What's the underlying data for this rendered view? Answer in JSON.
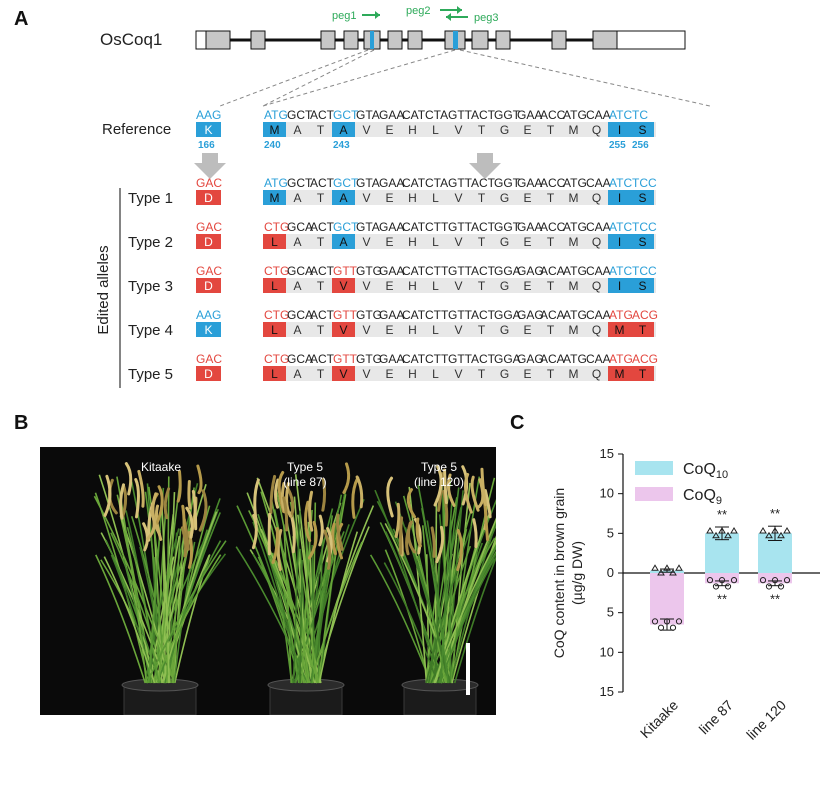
{
  "panels": {
    "a": "A",
    "b": "B",
    "c": "C"
  },
  "gene": {
    "name": "OsCoq1",
    "pegs": [
      {
        "label": "peg1",
        "direction": "right"
      },
      {
        "label": "peg2",
        "direction": "right"
      },
      {
        "label": "peg3",
        "direction": "left"
      }
    ]
  },
  "alignment": {
    "reference_label": "Reference",
    "edited_label": "Edited alleles",
    "reference": {
      "codon1": "AAG",
      "aa1": "K",
      "pos1": "166",
      "seq": [
        "ATG",
        "GCT",
        "ACT",
        "GCT",
        "GTA",
        "GAA",
        "CAT",
        "CTA",
        "GTT",
        "ACT",
        "GGT",
        "GAA",
        "ACC",
        "ATG",
        "CAA",
        "ATC",
        "TC"
      ],
      "aa": [
        "M",
        "A",
        "T",
        "A",
        "V",
        "E",
        "H",
        "L",
        "V",
        "T",
        "G",
        "E",
        "T",
        "M",
        "Q",
        "I",
        "S"
      ],
      "pos_a": "240",
      "pos_b": "243",
      "pos_c": "255",
      "pos_d": "256"
    },
    "types": [
      {
        "label": "Type 1",
        "codon1": "GAC",
        "aa1": "D",
        "seq": [
          "ATG",
          "GCT",
          "ACT",
          "GCT",
          "GTA",
          "GAA",
          "CAT",
          "CTA",
          "GTT",
          "ACT",
          "GGT",
          "GAA",
          "ACC",
          "ATG",
          "CAA",
          "ATC",
          "TCC"
        ],
        "aa": [
          "M",
          "A",
          "T",
          "A",
          "V",
          "E",
          "H",
          "L",
          "V",
          "T",
          "G",
          "E",
          "T",
          "M",
          "Q",
          "I",
          "S"
        ]
      },
      {
        "label": "Type 2",
        "codon1": "GAC",
        "aa1": "D",
        "seq": [
          "CTG",
          "GCA",
          "ACT",
          "GCT",
          "GTA",
          "GAA",
          "CAT",
          "CTT",
          "GTT",
          "ACT",
          "GGT",
          "GAA",
          "ACC",
          "ATG",
          "CAA",
          "ATC",
          "TCC"
        ],
        "aa": [
          "L",
          "A",
          "T",
          "A",
          "V",
          "E",
          "H",
          "L",
          "V",
          "T",
          "G",
          "E",
          "T",
          "M",
          "Q",
          "I",
          "S"
        ]
      },
      {
        "label": "Type 3",
        "codon1": "GAC",
        "aa1": "D",
        "seq": [
          "CTG",
          "GCA",
          "ACT",
          "GTT",
          "GTG",
          "GAA",
          "CAT",
          "CTT",
          "GTT",
          "ACT",
          "GGA",
          "GAG",
          "ACA",
          "ATG",
          "CAA",
          "ATC",
          "TCC"
        ],
        "aa": [
          "L",
          "A",
          "T",
          "V",
          "V",
          "E",
          "H",
          "L",
          "V",
          "T",
          "G",
          "E",
          "T",
          "M",
          "Q",
          "I",
          "S"
        ]
      },
      {
        "label": "Type 4",
        "codon1": "AAG",
        "aa1": "K",
        "seq": [
          "CTG",
          "GCA",
          "ACT",
          "GTT",
          "GTG",
          "GAA",
          "CAT",
          "CTT",
          "GTT",
          "ACT",
          "GGA",
          "GAG",
          "ACA",
          "ATG",
          "CAA",
          "ATG",
          "ACG"
        ],
        "aa": [
          "L",
          "A",
          "T",
          "V",
          "V",
          "E",
          "H",
          "L",
          "V",
          "T",
          "G",
          "E",
          "T",
          "M",
          "Q",
          "M",
          "T"
        ]
      },
      {
        "label": "Type 5",
        "codon1": "GAC",
        "aa1": "D",
        "seq": [
          "CTG",
          "GCA",
          "ACT",
          "GTT",
          "GTG",
          "GAA",
          "CAT",
          "CTT",
          "GTT",
          "ACT",
          "GGA",
          "GAG",
          "ACA",
          "ATG",
          "CAA",
          "ATG",
          "ACG"
        ],
        "aa": [
          "L",
          "A",
          "T",
          "V",
          "V",
          "E",
          "H",
          "L",
          "V",
          "T",
          "G",
          "E",
          "T",
          "M",
          "Q",
          "M",
          "T"
        ]
      }
    ]
  },
  "photo": {
    "labels": [
      {
        "line1": "Kitaake",
        "line2": ""
      },
      {
        "line1": "Type 5",
        "line2": "(line 87)"
      },
      {
        "line1": "Type 5",
        "line2": "(line 120)"
      }
    ]
  },
  "chart_data": {
    "type": "bar",
    "categories": [
      "Kitaake",
      "line 87",
      "line 120"
    ],
    "series": [
      {
        "name": "CoQ10",
        "values": [
          0.3,
          5.0,
          5.0
        ],
        "errors": [
          0.2,
          0.8,
          0.9
        ],
        "direction": "up",
        "color": "#a8e4ef"
      },
      {
        "name": "CoQ9",
        "values": [
          6.5,
          1.3,
          1.3
        ],
        "errors": [
          0.7,
          0.3,
          0.3
        ],
        "direction": "down",
        "color": "#ecc6ec"
      }
    ],
    "significance": [
      {
        "category": "line 87",
        "series": "CoQ10",
        "mark": "**"
      },
      {
        "category": "line 120",
        "series": "CoQ10",
        "mark": "**"
      },
      {
        "category": "line 87",
        "series": "CoQ9",
        "mark": "**"
      },
      {
        "category": "line 120",
        "series": "CoQ9",
        "mark": "**"
      }
    ],
    "ylabel_line1": "CoQ content in brown grain",
    "ylabel_line2": "(µg/g DW)",
    "yticks": [
      "15",
      "10",
      "5",
      "0",
      "5",
      "10",
      "15"
    ],
    "ylim": [
      -15,
      15
    ],
    "legend_sub": [
      "10",
      "9"
    ],
    "legend_base": "CoQ",
    "legend_position": "top-right"
  },
  "colors": {
    "blue": "#2a9fd8",
    "red": "#e3473f",
    "grey": "#e8e8e8",
    "green": "#2eaa5a",
    "exon": "#c7c7c7"
  }
}
